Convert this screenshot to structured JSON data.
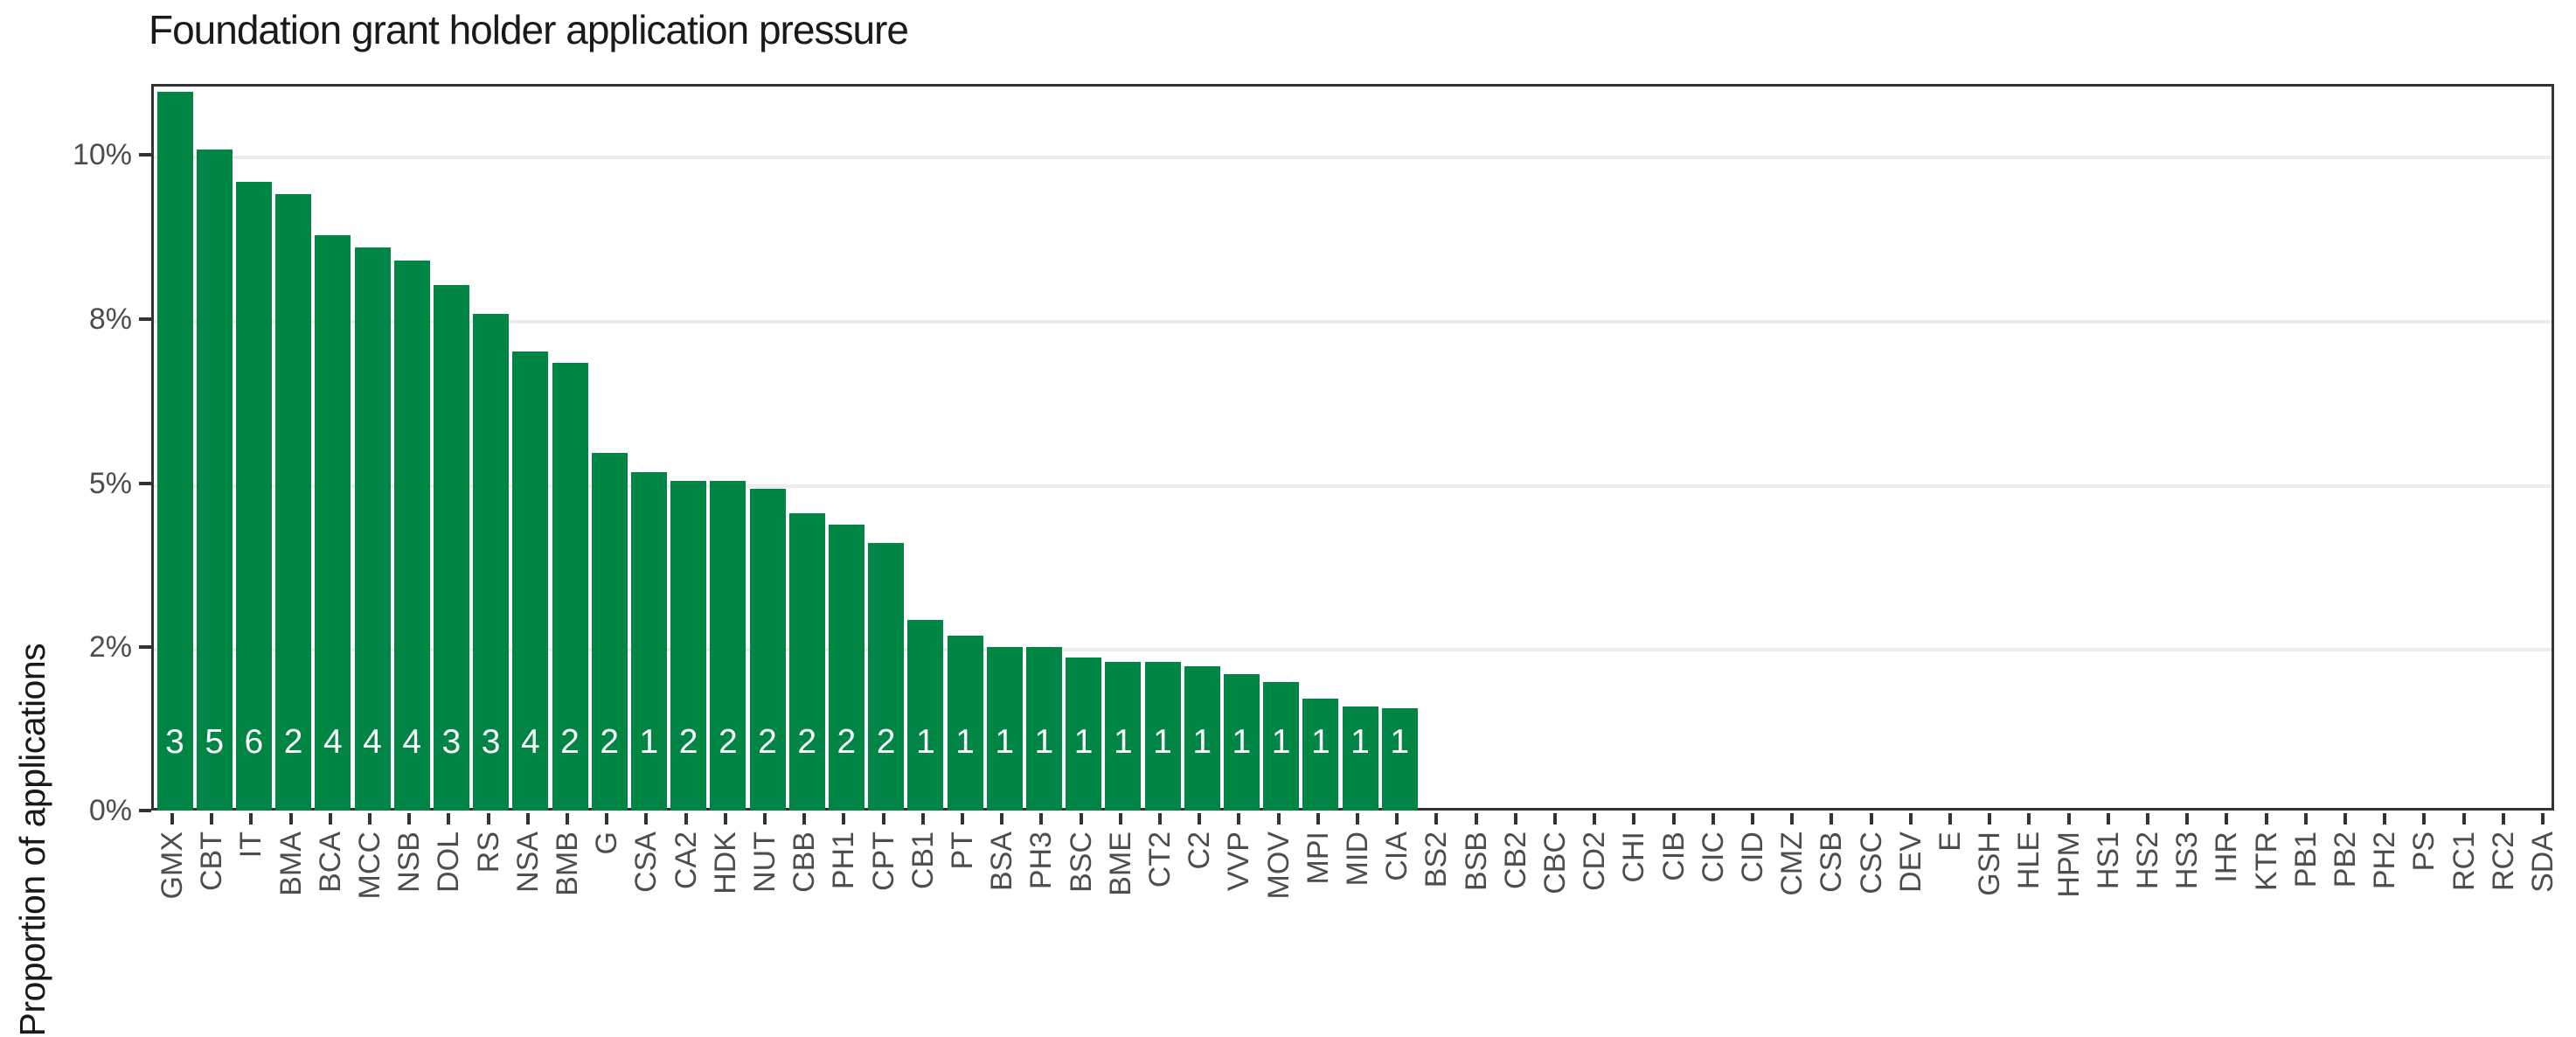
{
  "title": "Foundation grant holder application pressure",
  "ylabel": "Proportion of applications",
  "colors": {
    "bar_fill": "#008545",
    "gridline": "#ececec",
    "axis_line": "#333333",
    "tick_label": "#4d4d4d",
    "title_text": "#1a1a1a",
    "bar_label_text": "#ffffff"
  },
  "chart_data": {
    "type": "bar",
    "title": "Foundation grant holder application pressure",
    "xlabel": "",
    "ylabel": "Proportion of applications",
    "legend": "none",
    "grid": "horizontal-major",
    "y_axis": {
      "breaks_percent": [
        0,
        2,
        5,
        8,
        10
      ],
      "tick_labels": [
        "0%",
        "2%",
        "5%",
        "8%",
        "10%"
      ],
      "scale_note": "breaks 0,2,5,8,10 are rendered at equal pixel spacing (non-linear axis)",
      "ylim_percent": [
        0,
        10.93
      ]
    },
    "categories": [
      "GMX",
      "CBT",
      "IT",
      "BMA",
      "BCA",
      "MCC",
      "NSB",
      "DOL",
      "RS",
      "NSA",
      "BMB",
      "G",
      "CSA",
      "CA2",
      "HDK",
      "NUT",
      "CBB",
      "PH1",
      "CPT",
      "CB1",
      "PT",
      "BSA",
      "PH3",
      "BSC",
      "BME",
      "CT2",
      "C2",
      "VVP",
      "MOV",
      "MPI",
      "MID",
      "CIA",
      "BS2",
      "BSB",
      "CB2",
      "CBC",
      "CD2",
      "CHI",
      "CIB",
      "CIC",
      "CID",
      "CMZ",
      "CSB",
      "CSC",
      "DEV",
      "E",
      "GSH",
      "HLE",
      "HPM",
      "HS1",
      "HS2",
      "HS3",
      "IHR",
      "KTR",
      "PB1",
      "PB2",
      "PH2",
      "PS",
      "RC1",
      "RC2",
      "SDA"
    ],
    "values_percent": [
      10.8,
      10.1,
      9.7,
      9.55,
      9.05,
      8.9,
      8.75,
      8.45,
      8.1,
      7.45,
      7.25,
      5.6,
      5.25,
      5.1,
      5.1,
      4.95,
      4.5,
      4.3,
      3.95,
      2.55,
      2.25,
      2.05,
      2.05,
      1.9,
      1.85,
      1.85,
      1.8,
      1.7,
      1.6,
      1.4,
      1.3,
      1.28,
      0,
      0,
      0,
      0,
      0,
      0,
      0,
      0,
      0,
      0,
      0,
      0,
      0,
      0,
      0,
      0,
      0,
      0,
      0,
      0,
      0,
      0,
      0,
      0,
      0,
      0,
      0,
      0,
      0
    ],
    "bar_count_labels": [
      3,
      5,
      6,
      2,
      4,
      4,
      4,
      3,
      3,
      4,
      2,
      2,
      1,
      2,
      2,
      2,
      2,
      2,
      2,
      1,
      1,
      1,
      1,
      1,
      1,
      1,
      1,
      1,
      1,
      1,
      1,
      1,
      null,
      null,
      null,
      null,
      null,
      null,
      null,
      null,
      null,
      null,
      null,
      null,
      null,
      null,
      null,
      null,
      null,
      null,
      null,
      null,
      null,
      null,
      null,
      null,
      null,
      null,
      null,
      null,
      null
    ]
  }
}
